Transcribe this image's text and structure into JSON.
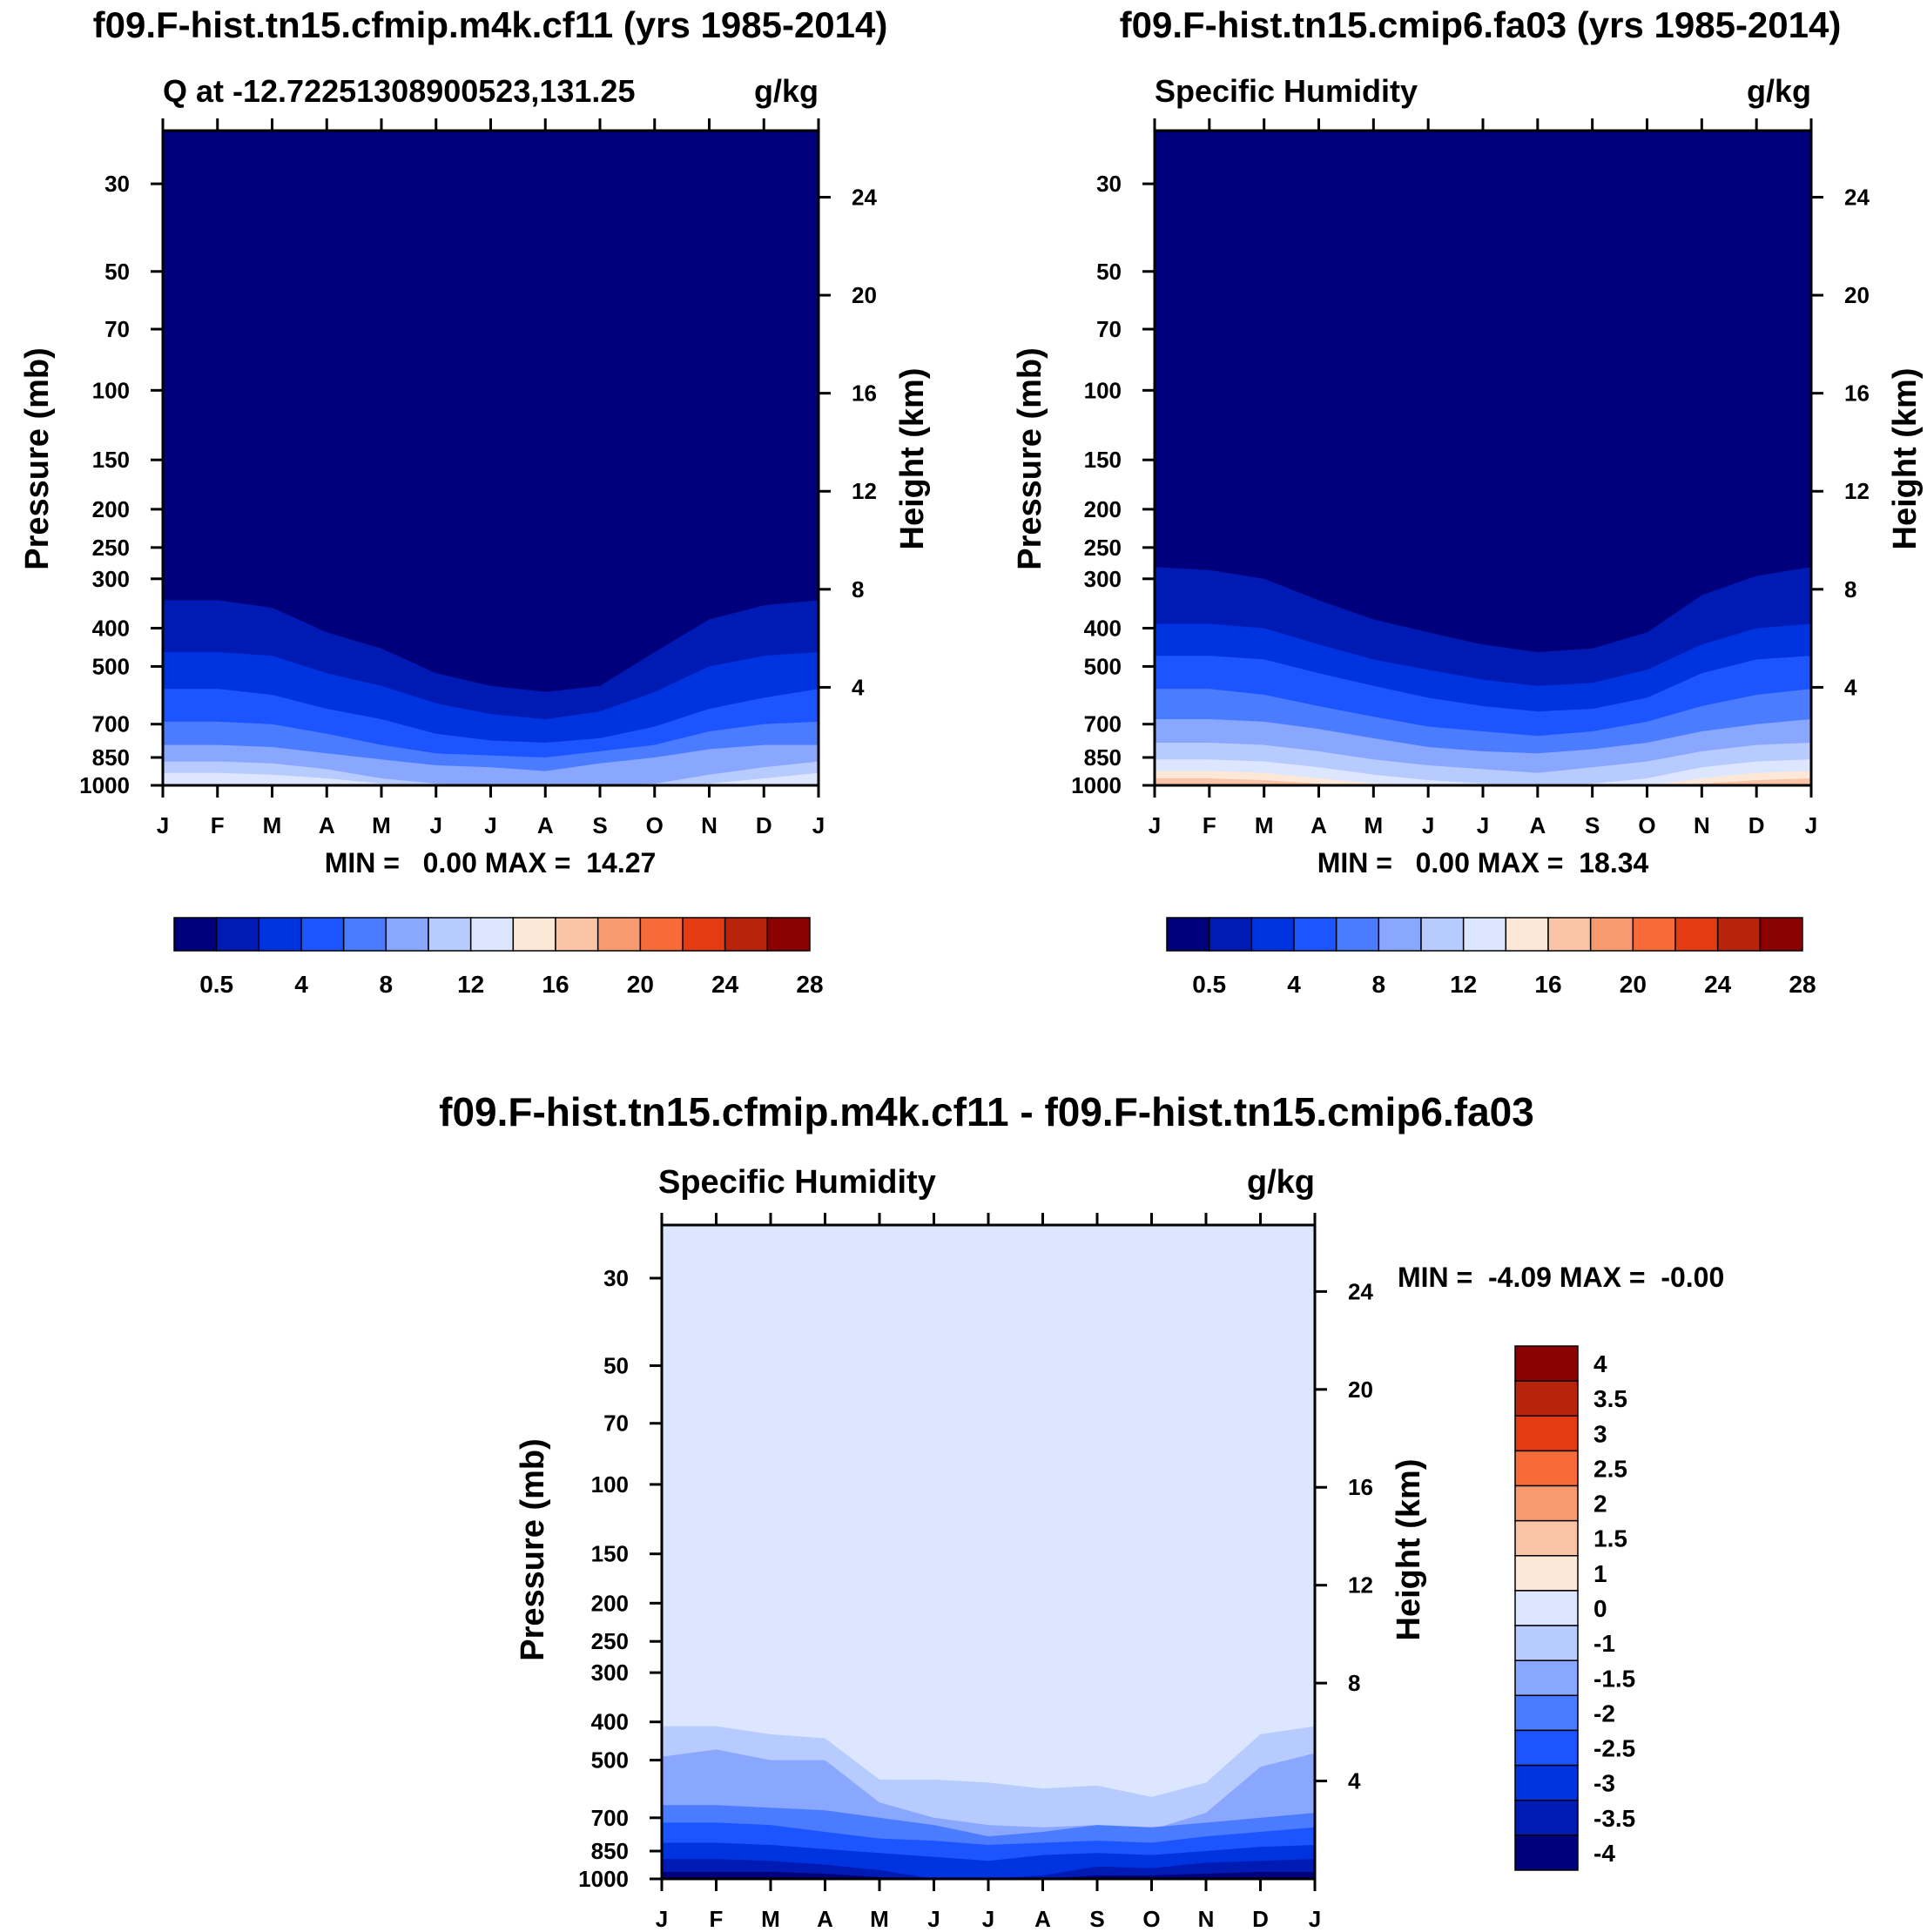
{
  "chart_data": [
    {
      "type": "contour",
      "title": "f09.F-hist.tn15.cfmip.m4k.cf11 (yrs 1985-2014)",
      "left_subtitle": "Q at -12.72251308900523,131.25",
      "right_subtitle": "g/kg",
      "xlabel": "",
      "ylabel": "Pressure (mb)",
      "y2label": "Height (km)",
      "x_ticks": [
        "J",
        "F",
        "M",
        "A",
        "M",
        "J",
        "J",
        "A",
        "S",
        "O",
        "N",
        "D",
        "J"
      ],
      "y_ticks": [
        "30",
        "50",
        "70",
        "100",
        "150",
        "200",
        "250",
        "300",
        "400",
        "500",
        "700",
        "850",
        "1000"
      ],
      "y2_ticks": [
        "24",
        "20",
        "16",
        "12",
        "8",
        "4"
      ],
      "stats": "MIN =   0.00 MAX =  14.27",
      "levels": [
        "0.5",
        "4",
        "8",
        "12",
        "16",
        "20",
        "24",
        "28"
      ],
      "colors": [
        "#00007d",
        "#001ab4",
        "#0033e0",
        "#1c55ff",
        "#4b7cff",
        "#8aa7ff",
        "#b8cbff",
        "#dce7ff",
        "#fde8d8",
        "#fcc4a6",
        "#f89a70",
        "#f76a3a",
        "#e53b12",
        "#b9230c",
        "#8b0000"
      ],
      "min": 0.0,
      "max": 14.27,
      "seasonal_contour_pressures_mb": {
        "months": [
          "J",
          "F",
          "M",
          "A",
          "M",
          "J",
          "J",
          "A",
          "S",
          "O",
          "N",
          "D",
          "J"
        ],
        "q_0_5": [
          340,
          340,
          355,
          410,
          450,
          520,
          560,
          580,
          560,
          460,
          380,
          350,
          340
        ],
        "q_2": [
          460,
          460,
          470,
          520,
          560,
          620,
          660,
          680,
          650,
          580,
          500,
          470,
          460
        ],
        "q_4": [
          570,
          570,
          590,
          640,
          680,
          740,
          770,
          780,
          760,
          710,
          640,
          600,
          570
        ],
        "q_6": [
          690,
          690,
          700,
          740,
          790,
          830,
          840,
          850,
          820,
          790,
          730,
          700,
          690
        ],
        "q_8": [
          790,
          790,
          800,
          830,
          860,
          890,
          900,
          920,
          880,
          850,
          810,
          790,
          790
        ],
        "q_10": [
          870,
          870,
          880,
          910,
          960,
          990,
          1000,
          1000,
          1000,
          990,
          940,
          900,
          870
        ],
        "q_12": [
          930,
          930,
          940,
          960,
          990,
          1000,
          1000,
          1000,
          1000,
          1000,
          990,
          960,
          930
        ]
      }
    },
    {
      "type": "contour",
      "title": "f09.F-hist.tn15.cmip6.fa03 (yrs 1985-2014)",
      "left_subtitle": "Specific Humidity",
      "right_subtitle": "g/kg",
      "ylabel": "Pressure (mb)",
      "y2label": "Height (km)",
      "x_ticks": [
        "J",
        "F",
        "M",
        "A",
        "M",
        "J",
        "J",
        "A",
        "S",
        "O",
        "N",
        "D",
        "J"
      ],
      "y_ticks": [
        "30",
        "50",
        "70",
        "100",
        "150",
        "200",
        "250",
        "300",
        "400",
        "500",
        "700",
        "850",
        "1000"
      ],
      "y2_ticks": [
        "24",
        "20",
        "16",
        "12",
        "8",
        "4"
      ],
      "stats": "MIN =   0.00 MAX =  18.34",
      "levels": [
        "0.5",
        "4",
        "8",
        "12",
        "16",
        "20",
        "24",
        "28"
      ],
      "colors": [
        "#00007d",
        "#001ab4",
        "#0033e0",
        "#1c55ff",
        "#4b7cff",
        "#8aa7ff",
        "#b8cbff",
        "#dce7ff",
        "#fde8d8",
        "#fcc4a6",
        "#f89a70",
        "#f76a3a",
        "#e53b12",
        "#b9230c",
        "#8b0000"
      ],
      "min": 0.0,
      "max": 18.34,
      "seasonal_contour_pressures_mb": {
        "months": [
          "J",
          "F",
          "M",
          "A",
          "M",
          "J",
          "J",
          "A",
          "S",
          "O",
          "N",
          "D",
          "J"
        ],
        "q_0_5": [
          280,
          285,
          300,
          340,
          380,
          410,
          440,
          460,
          450,
          410,
          330,
          295,
          280
        ],
        "q_2": [
          390,
          390,
          400,
          440,
          480,
          510,
          540,
          560,
          550,
          510,
          440,
          400,
          390
        ],
        "q_4": [
          470,
          470,
          480,
          520,
          560,
          600,
          630,
          650,
          640,
          600,
          520,
          480,
          470
        ],
        "q_6": [
          570,
          570,
          590,
          630,
          670,
          710,
          730,
          750,
          730,
          690,
          630,
          590,
          570
        ],
        "q_8": [
          680,
          680,
          690,
          720,
          760,
          800,
          820,
          830,
          810,
          780,
          730,
          700,
          680
        ],
        "q_10": [
          780,
          780,
          790,
          820,
          860,
          890,
          910,
          930,
          900,
          870,
          820,
          790,
          780
        ],
        "q_12": [
          860,
          860,
          870,
          900,
          940,
          970,
          990,
          1000,
          990,
          960,
          900,
          870,
          860
        ],
        "q_14": [
          920,
          920,
          930,
          960,
          990,
          1000,
          1000,
          1000,
          1000,
          1000,
          960,
          930,
          920
        ],
        "q_16": [
          960,
          960,
          970,
          990,
          1000,
          1000,
          1000,
          1000,
          1000,
          1000,
          990,
          970,
          960
        ]
      }
    },
    {
      "type": "contour",
      "title": "f09.F-hist.tn15.cfmip.m4k.cf11 - f09.F-hist.tn15.cmip6.fa03",
      "left_subtitle": "Specific Humidity",
      "right_subtitle": "g/kg",
      "ylabel": "Pressure (mb)",
      "y2label": "Height (km)",
      "x_ticks": [
        "J",
        "F",
        "M",
        "A",
        "M",
        "J",
        "J",
        "A",
        "S",
        "O",
        "N",
        "D",
        "J"
      ],
      "y_ticks": [
        "30",
        "50",
        "70",
        "100",
        "150",
        "200",
        "250",
        "300",
        "400",
        "500",
        "700",
        "850",
        "1000"
      ],
      "y2_ticks": [
        "24",
        "20",
        "16",
        "12",
        "8",
        "4"
      ],
      "stats": "MIN =  -4.09 MAX =  -0.00",
      "levels": [
        "4",
        "3.5",
        "3",
        "2.5",
        "2",
        "1.5",
        "1",
        "0",
        "-1",
        "-1.5",
        "-2",
        "-2.5",
        "-3",
        "-3.5",
        "-4"
      ],
      "colors": [
        "#8b0000",
        "#b9230c",
        "#e53b12",
        "#f76a3a",
        "#f89a70",
        "#fcc4a6",
        "#fde8d8",
        "#dce7ff",
        "#b8cbff",
        "#8aa7ff",
        "#4b7cff",
        "#1c55ff",
        "#0033e0",
        "#001ab4",
        "#00007d"
      ],
      "min": -4.09,
      "max": -0.0,
      "seasonal_contour_pressures_mb": {
        "months": [
          "J",
          "F",
          "M",
          "A",
          "M",
          "J",
          "J",
          "A",
          "S",
          "O",
          "N",
          "D",
          "J"
        ],
        "dq_minus_0_5": [
          410,
          410,
          430,
          440,
          560,
          560,
          570,
          590,
          580,
          620,
          570,
          430,
          410
        ],
        "dq_minus_1": [
          490,
          470,
          500,
          500,
          640,
          700,
          730,
          740,
          730,
          750,
          680,
          520,
          480
        ],
        "dq_minus_1_5": [
          650,
          650,
          660,
          670,
          700,
          730,
          780,
          760,
          730,
          740,
          720,
          700,
          680
        ],
        "dq_minus_2": [
          720,
          720,
          730,
          760,
          790,
          800,
          820,
          810,
          800,
          810,
          780,
          760,
          740
        ],
        "dq_minus_2_5": [
          810,
          810,
          820,
          840,
          860,
          880,
          900,
          870,
          860,
          870,
          850,
          830,
          820
        ],
        "dq_minus_3": [
          890,
          890,
          900,
          920,
          950,
          1000,
          1000,
          980,
          930,
          940,
          910,
          900,
          890
        ],
        "dq_minus_3_5": [
          960,
          960,
          960,
          970,
          990,
          1000,
          1000,
          1000,
          980,
          980,
          970,
          960,
          960
        ]
      }
    }
  ]
}
